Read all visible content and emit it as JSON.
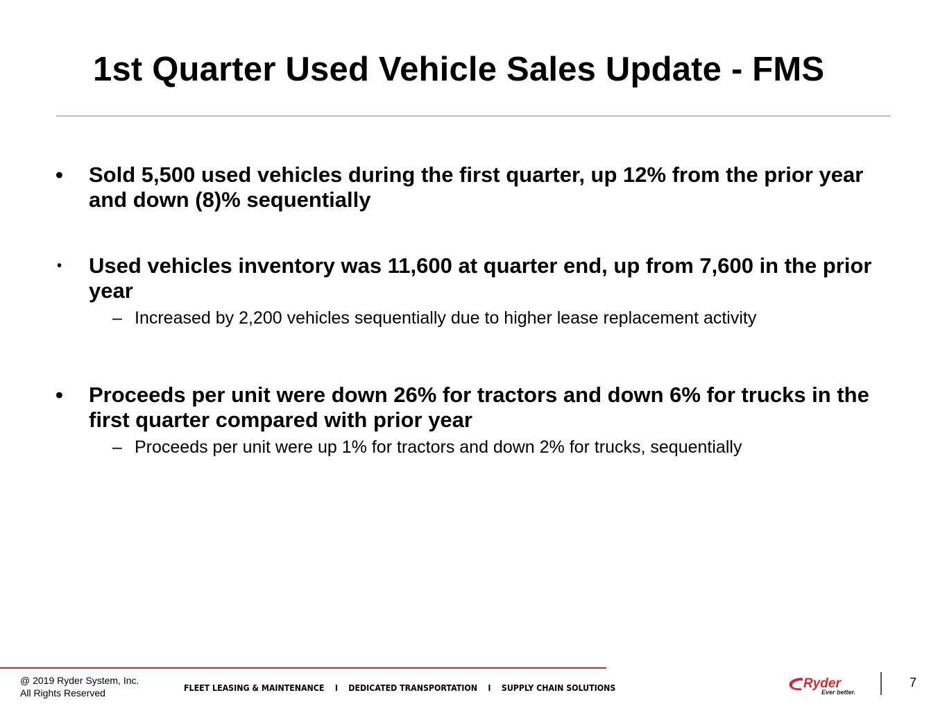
{
  "slide": {
    "title": "1st Quarter Used Vehicle Sales Update - FMS",
    "bullets": [
      {
        "marker": "•",
        "text": "Sold 5,500 used vehicles during the first quarter, up 12% from the prior year and down (8)% sequentially"
      },
      {
        "marker": "•",
        "text": "Used vehicles inventory was 11,600 at quarter end, up from 7,600 in the prior year",
        "sub": "Increased by 2,200 vehicles sequentially due to higher lease replacement activity"
      },
      {
        "marker": "•",
        "text": "Proceeds per unit were down 26% for tractors and down 6% for trucks in the first quarter compared with prior year",
        "sub": "Proceeds per unit were up 1% for tractors and down 2% for trucks, sequentially"
      }
    ],
    "sub_marker": "–"
  },
  "footer": {
    "copyright_line1": "@ 2019 Ryder System, Inc.",
    "copyright_line2": "All Rights Reserved",
    "tagline": "FLEET LEASING & MAINTENANCE    I    DEDICATED TRANSPORTATION    I    SUPPLY CHAIN SOLUTIONS",
    "logo_word": "Ryder",
    "logo_slogan": "Ever better.",
    "page_number": "7"
  },
  "colors": {
    "accent_red": "#d7262e",
    "title_rule": "#bdbdbd"
  }
}
